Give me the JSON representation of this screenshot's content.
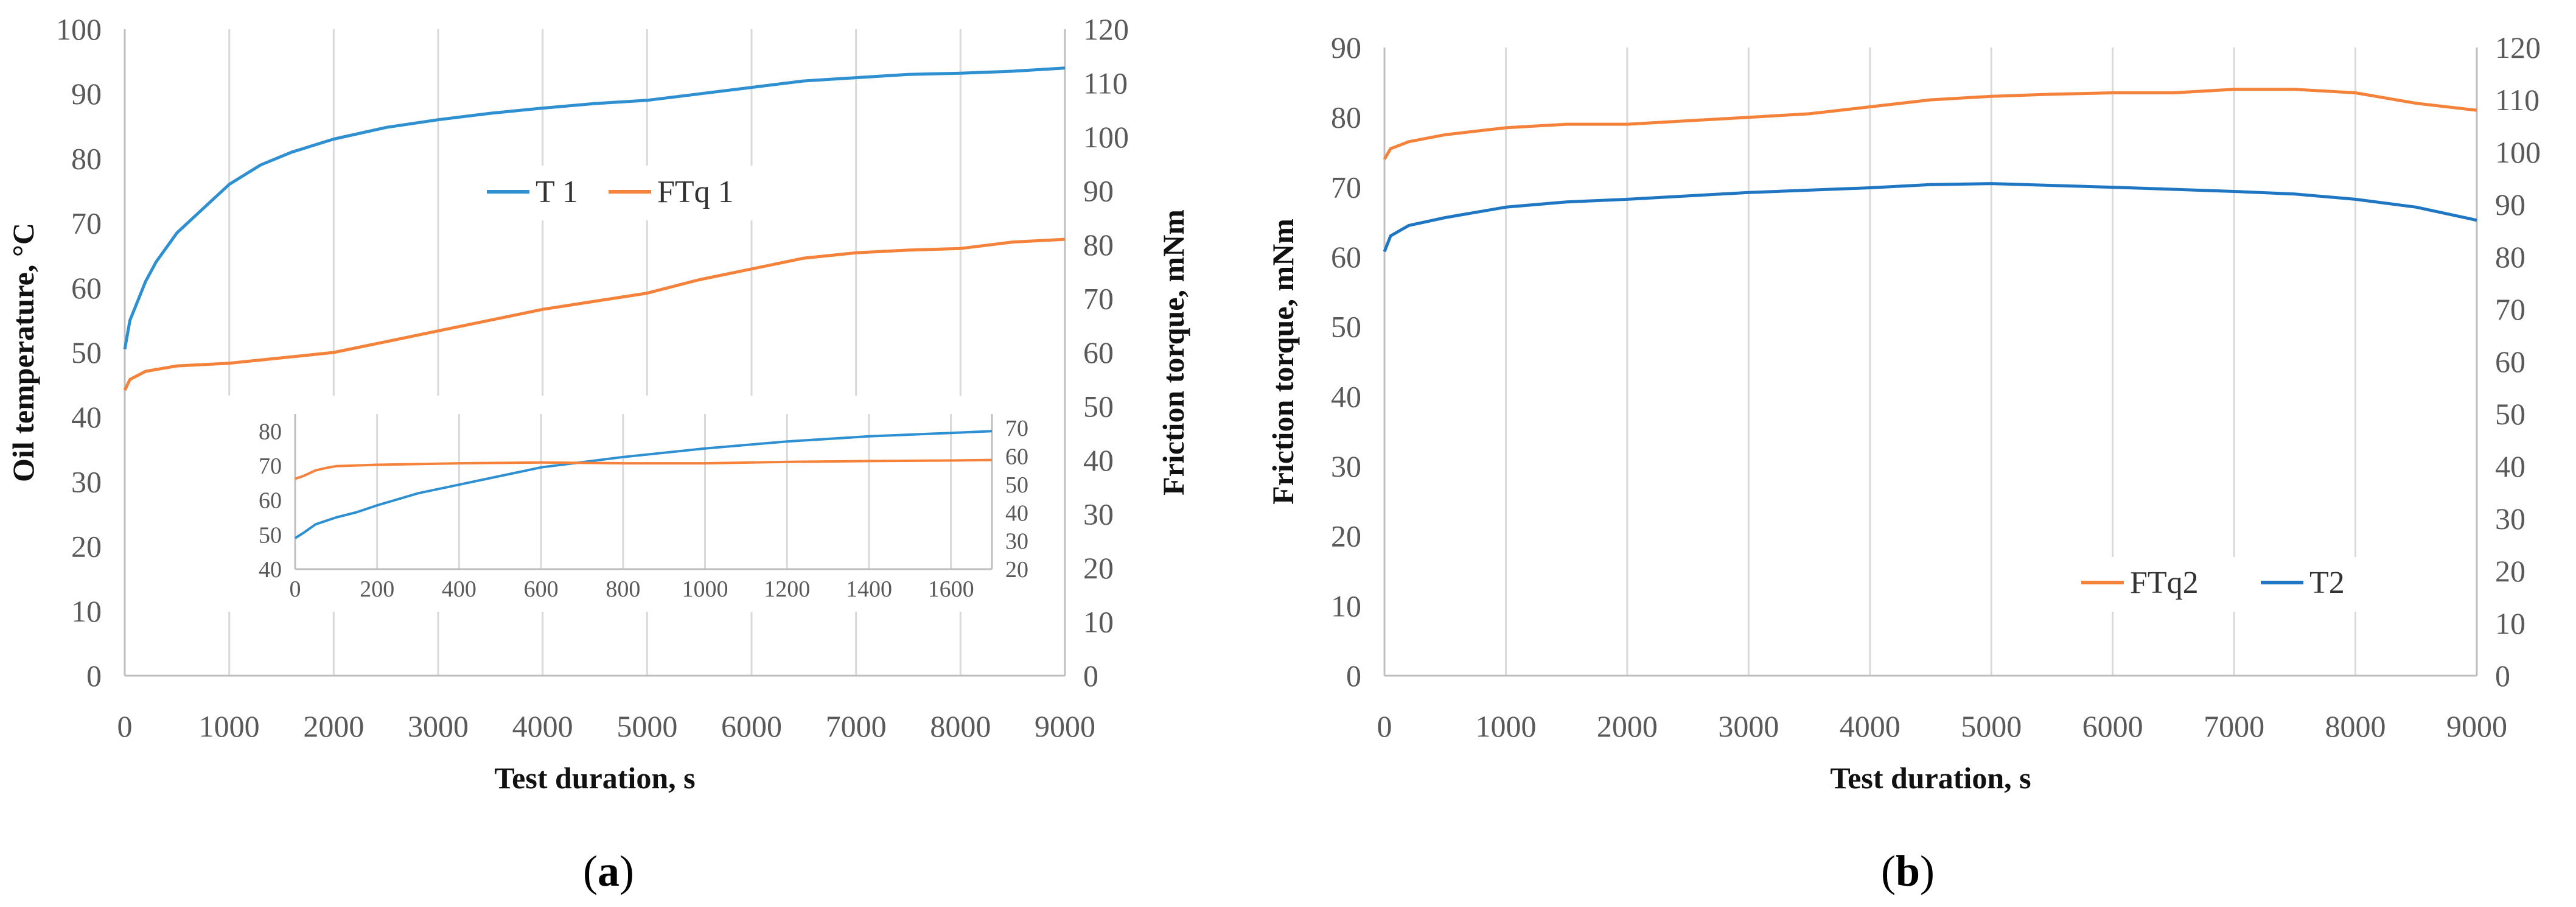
{
  "colors": {
    "T": "#2e8fd1",
    "FTq": "#f5823a",
    "T2": "#1f77c4"
  },
  "chart_data": [
    {
      "type": "line",
      "panel": "a",
      "panel_label": {
        "open": "(",
        "letter": "a",
        "close": ")"
      },
      "xlabel": "Test duration, s",
      "ylabel_left": "Oil temperature, °C",
      "ylabel_right": "Friction torque, mNm",
      "xlim": [
        0,
        9000
      ],
      "ylim_left": [
        0,
        100
      ],
      "ylim_right": [
        0,
        120
      ],
      "x_ticks": [
        "0",
        "1000",
        "2000",
        "3000",
        "4000",
        "5000",
        "6000",
        "7000",
        "8000",
        "9000"
      ],
      "y_left_ticks": [
        "0",
        "10",
        "20",
        "30",
        "40",
        "50",
        "60",
        "70",
        "80",
        "90",
        "100"
      ],
      "y_right_ticks": [
        "0",
        "10",
        "20",
        "30",
        "40",
        "50",
        "60",
        "70",
        "80",
        "90",
        "100",
        "110",
        "120"
      ],
      "legend": [
        "T 1",
        "FTq 1"
      ],
      "legend_position": "center",
      "series": [
        {
          "name": "T 1",
          "axis": "left",
          "color_key": "T",
          "x": [
            0,
            50,
            100,
            200,
            300,
            500,
            800,
            1000,
            1300,
            1600,
            2000,
            2500,
            3000,
            3500,
            4000,
            4500,
            5000,
            5500,
            6000,
            6500,
            7000,
            7500,
            8000,
            8500,
            9000
          ],
          "y": [
            50.5,
            55,
            57,
            61,
            64,
            68.5,
            73,
            76,
            79,
            81,
            83,
            84.8,
            86,
            87,
            87.8,
            88.5,
            89,
            90,
            91,
            92,
            92.5,
            93,
            93.2,
            93.5,
            94
          ]
        },
        {
          "name": "FTq 1",
          "axis": "right",
          "color_key": "FTq",
          "x": [
            0,
            50,
            200,
            500,
            800,
            1000,
            1500,
            2000,
            2500,
            3000,
            3500,
            4000,
            4500,
            5000,
            5500,
            6000,
            6500,
            7000,
            7500,
            8000,
            8500,
            9000
          ],
          "y": [
            53,
            55,
            56.5,
            57.5,
            57.8,
            58,
            59,
            60,
            62,
            64,
            66,
            68,
            69.5,
            71,
            73.5,
            75.5,
            77.5,
            78.5,
            79,
            79.3,
            80.5,
            81
          ]
        }
      ],
      "inset": {
        "xlim": [
          0,
          1700
        ],
        "ylim_left": [
          40,
          85
        ],
        "ylim_right": [
          20,
          75
        ],
        "x_ticks": [
          "0",
          "200",
          "400",
          "600",
          "800",
          "1000",
          "1200",
          "1400",
          "1600"
        ],
        "y_left_ticks": [
          "40",
          "50",
          "60",
          "70",
          "80"
        ],
        "y_right_ticks": [
          "20",
          "30",
          "40",
          "50",
          "60",
          "70"
        ],
        "series": [
          {
            "name": "T 1",
            "axis": "left",
            "color_key": "T",
            "x": [
              0,
              20,
              50,
              100,
              150,
              200,
              300,
              400,
              500,
              600,
              800,
              1000,
              1200,
              1400,
              1600,
              1700
            ],
            "y": [
              49,
              50.5,
              53,
              55,
              56.5,
              58.5,
              62,
              64.5,
              67,
              69.5,
              72.5,
              75,
              77,
              78.5,
              79.5,
              80
            ]
          },
          {
            "name": "FTq 1",
            "axis": "right",
            "color_key": "FTq",
            "x": [
              0,
              20,
              50,
              80,
              100,
              200,
              400,
              600,
              800,
              1000,
              1200,
              1400,
              1600,
              1700
            ],
            "y": [
              52,
              53,
              55,
              56,
              56.5,
              57,
              57.5,
              57.8,
              57.5,
              57.5,
              58,
              58.3,
              58.5,
              58.7
            ]
          }
        ]
      }
    },
    {
      "type": "line",
      "panel": "b",
      "panel_label": {
        "open": "(",
        "letter": "b",
        "close": ")"
      },
      "xlabel": "Test duration, s",
      "ylabel_left": "Friction torque, mNm",
      "xlim": [
        0,
        9000
      ],
      "ylim_left": [
        0,
        90
      ],
      "ylim_right": [
        0,
        120
      ],
      "x_ticks": [
        "0",
        "1000",
        "2000",
        "3000",
        "4000",
        "5000",
        "6000",
        "7000",
        "8000",
        "9000"
      ],
      "y_left_ticks": [
        "0",
        "10",
        "20",
        "30",
        "40",
        "50",
        "60",
        "70",
        "80",
        "90"
      ],
      "y_right_ticks": [
        "0",
        "10",
        "20",
        "30",
        "40",
        "50",
        "60",
        "70",
        "80",
        "90",
        "100",
        "110",
        "120"
      ],
      "legend": [
        "FTq2",
        "T2"
      ],
      "legend_position": "lower-right",
      "series": [
        {
          "name": "FTq2",
          "axis": "left",
          "color_key": "FTq",
          "x": [
            0,
            50,
            200,
            500,
            1000,
            1500,
            2000,
            2500,
            3000,
            3500,
            4000,
            4500,
            5000,
            5500,
            6000,
            6500,
            7000,
            7500,
            8000,
            8500,
            9000
          ],
          "y": [
            74,
            75.5,
            76.5,
            77.5,
            78.5,
            79,
            79,
            79.5,
            80,
            80.5,
            81.5,
            82.5,
            83,
            83.3,
            83.5,
            83.5,
            84,
            84,
            83.5,
            82,
            81
          ]
        },
        {
          "name": "T2",
          "axis": "right",
          "color_key": "T2",
          "x": [
            0,
            50,
            200,
            500,
            1000,
            1500,
            2000,
            3000,
            4000,
            4500,
            5000,
            6000,
            7000,
            7500,
            8000,
            8500,
            9000
          ],
          "y": [
            81,
            84,
            86,
            87.5,
            89.5,
            90.5,
            91,
            92.3,
            93.2,
            93.8,
            94,
            93.3,
            92.5,
            92,
            91,
            89.5,
            87
          ]
        }
      ]
    }
  ]
}
